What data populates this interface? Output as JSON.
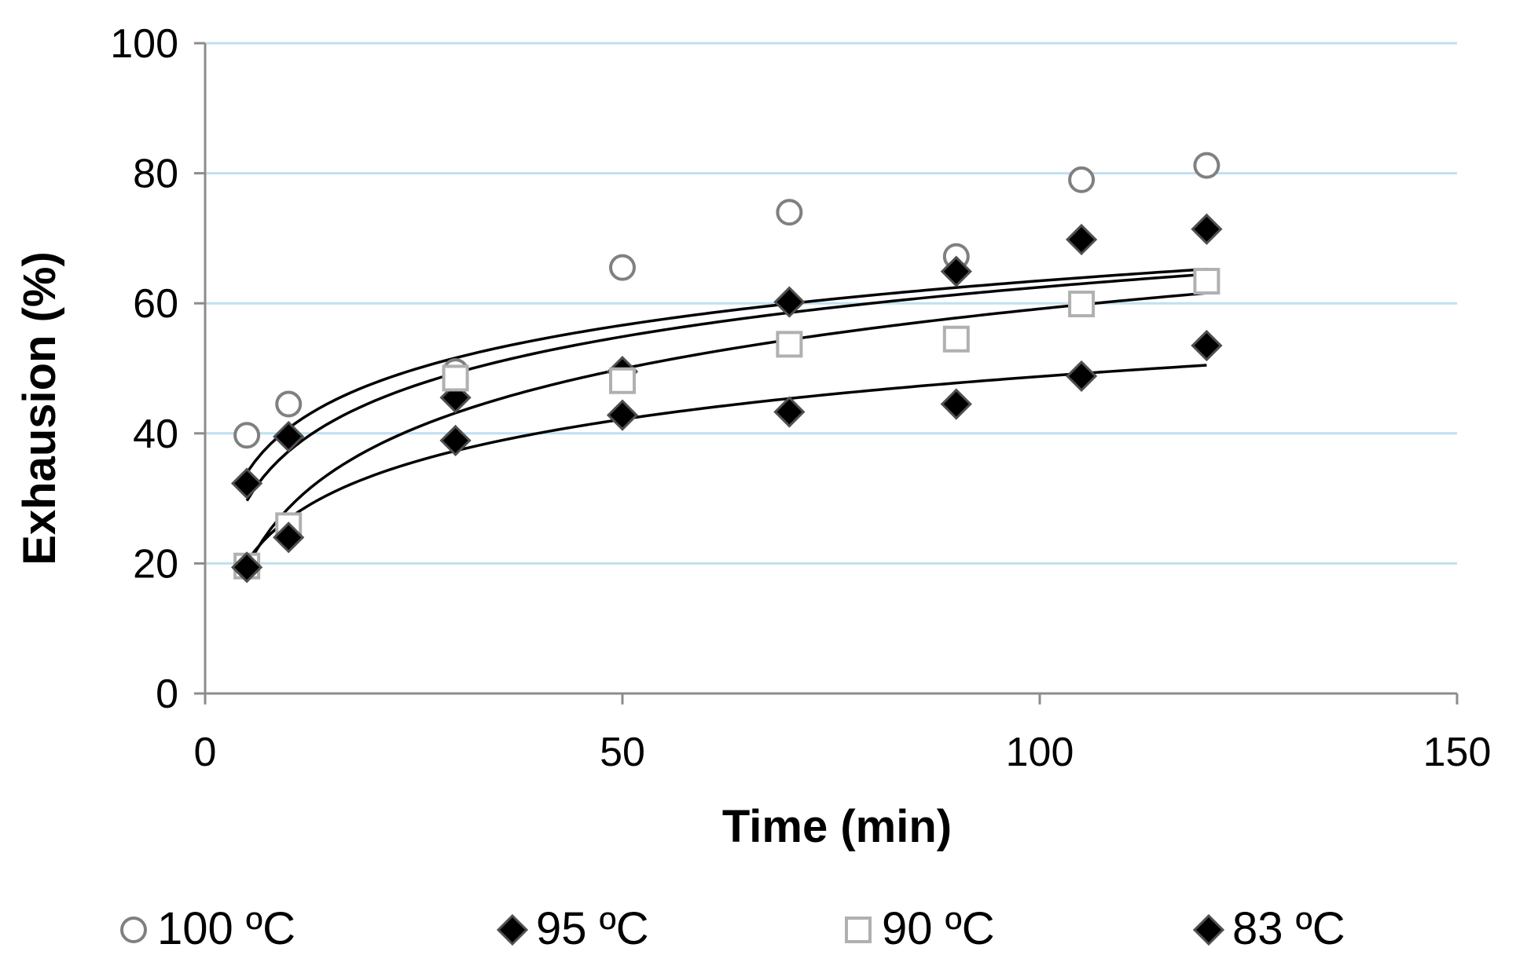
{
  "chart_data": {
    "type": "scatter",
    "title": "",
    "xlabel": "Time (min)",
    "ylabel": "Exhausion (%)",
    "xlim": [
      0,
      150
    ],
    "ylim": [
      0,
      100
    ],
    "xticks": [
      0,
      50,
      100,
      150
    ],
    "yticks": [
      0,
      20,
      40,
      60,
      80,
      100
    ],
    "grid": "horizontal",
    "legend_position": "bottom",
    "series": [
      {
        "name": "100 ºC",
        "marker": "circle",
        "color": "#808080",
        "x": [
          5,
          10,
          30,
          50,
          70,
          90,
          105,
          120
        ],
        "y": [
          39.7,
          44.5,
          49.5,
          65.5,
          74,
          67.2,
          79,
          81.2
        ],
        "trendline": {
          "type": "log",
          "a": 18.1,
          "b": 9.85,
          "x_from": 5,
          "x_to": 120
        }
      },
      {
        "name": "95 ºC",
        "marker": "diamond",
        "color": "#000000",
        "x": [
          5,
          10,
          30,
          50,
          70,
          90,
          105,
          120
        ],
        "y": [
          32.3,
          39.5,
          45.5,
          49.5,
          60.2,
          64.9,
          69.8,
          71.4
        ],
        "trendline": {
          "type": "log",
          "a": 12.0,
          "b": 10.96,
          "x_from": 5,
          "x_to": 120
        }
      },
      {
        "name": "90 ºC",
        "marker": "square",
        "color": "#aaaaaa",
        "x": [
          5,
          10,
          30,
          50,
          70,
          90,
          105,
          120
        ],
        "y": [
          19.6,
          25.8,
          48.5,
          48.1,
          53.7,
          54.5,
          59.9,
          63.4
        ],
        "trendline": {
          "type": "log",
          "a": -2.1,
          "b": 13.3,
          "x_from": 5,
          "x_to": 120
        }
      },
      {
        "name": "83 ºC",
        "marker": "diamond",
        "color": "#000000",
        "x": [
          5,
          10,
          30,
          50,
          70,
          90,
          105,
          120
        ],
        "y": [
          19.4,
          24.0,
          38.9,
          42.8,
          43.3,
          44.5,
          48.8,
          53.5
        ],
        "trendline": {
          "type": "log",
          "a": 5.0,
          "b": 9.5,
          "x_from": 5,
          "x_to": 120
        }
      }
    ]
  }
}
